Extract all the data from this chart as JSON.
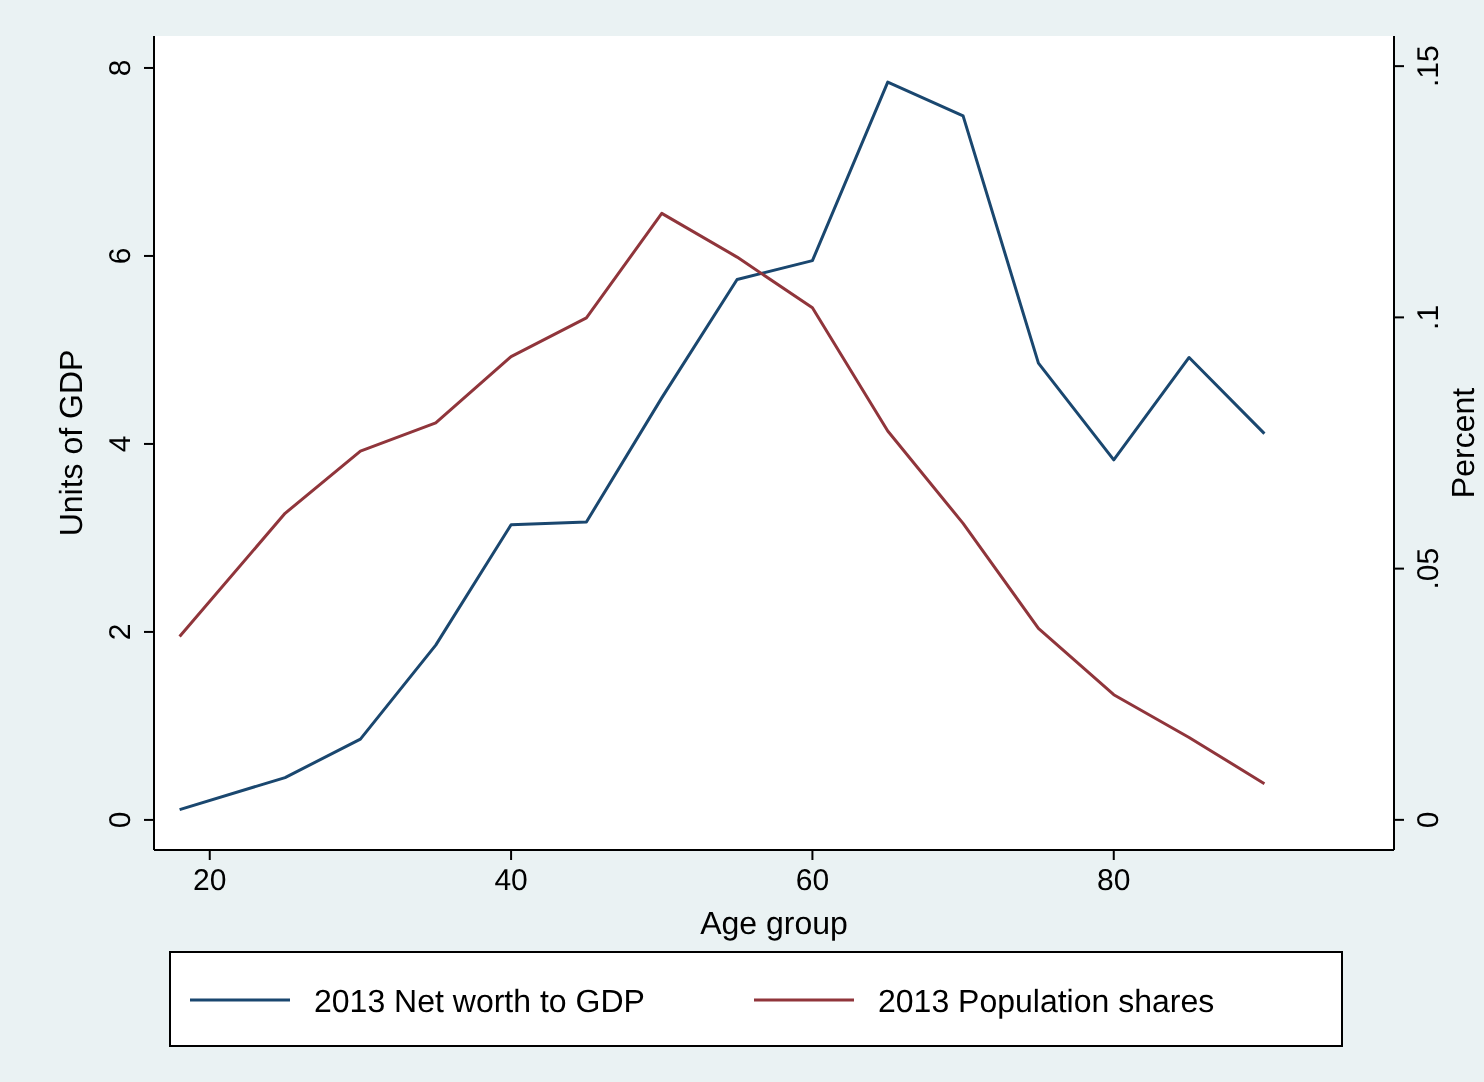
{
  "chart_data": {
    "type": "line",
    "xlabel": "Age group",
    "ylabel": "Units of GDP",
    "y2label": "Percent",
    "x": [
      18,
      25,
      30,
      35,
      40,
      45,
      50,
      55,
      60,
      65,
      70,
      75,
      80,
      85,
      90
    ],
    "series": [
      {
        "name": "2013 Net worth to GDP",
        "color": "#1a476f",
        "values": [
          0.11,
          0.45,
          0.86,
          1.86,
          3.14,
          3.17,
          4.49,
          5.75,
          5.95,
          7.85,
          7.49,
          4.86,
          3.83,
          4.92,
          4.11
        ]
      },
      {
        "name": "2013 Population shares",
        "color": "#90353b",
        "axis": "y2",
        "values": [
          0.0365,
          0.061,
          0.0734,
          0.079,
          0.0922,
          0.0999,
          0.1207,
          0.112,
          0.1019,
          0.0774,
          0.059,
          0.0381,
          0.0249,
          0.0164,
          0.0072
        ]
      }
    ],
    "xlim": [
      16.3,
      98.6
    ],
    "xticks": [
      20,
      40,
      60,
      80
    ],
    "ylim": [
      -0.32,
      8.34
    ],
    "yticks": [
      0,
      2,
      4,
      6,
      8
    ],
    "y2lim": [
      -0.006,
      0.156
    ],
    "y2ticks": [
      {
        "value": 0,
        "label": "0"
      },
      {
        "value": 0.05,
        "label": ".05"
      },
      {
        "value": 0.1,
        "label": ".1"
      },
      {
        "value": 0.15,
        "label": ".15"
      }
    ],
    "grid": false,
    "legend": "bottom",
    "marker": "none",
    "line_style": "solid"
  }
}
